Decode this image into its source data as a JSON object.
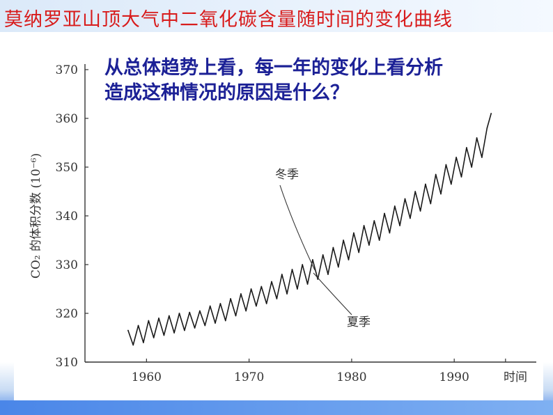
{
  "slide": {
    "title": "莫纳罗亚山顶大气中二氧化碳含量随时间的变化曲线",
    "question_line1": "从总体趋势上看，每一年的变化上看分析",
    "question_line2": "造成这种情况的原因是什么？"
  },
  "chart_data": {
    "type": "line",
    "xlabel": "时间",
    "ylabel": "CO₂ 的体积分数 (10⁻⁶)",
    "xlim": [
      1954,
      1998
    ],
    "ylim": [
      310,
      370
    ],
    "x_ticks": [
      "1960",
      "1970",
      "1980",
      "1990"
    ],
    "y_ticks": [
      "310",
      "320",
      "330",
      "340",
      "350",
      "360",
      "370"
    ],
    "annotations": [
      "冬季",
      "夏季"
    ],
    "series": [
      {
        "x": [
          1958.2,
          1958.7,
          1959.2,
          1959.7,
          1960.2,
          1960.7,
          1961.2,
          1961.7,
          1962.2,
          1962.7,
          1963.2,
          1963.7,
          1964.2,
          1964.7,
          1965.2,
          1965.7,
          1966.2,
          1966.7,
          1967.2,
          1967.7,
          1968.2,
          1968.7,
          1969.2,
          1969.7,
          1970.2,
          1970.7,
          1971.2,
          1971.7,
          1972.2,
          1972.7,
          1973.2,
          1973.7,
          1974.2,
          1974.7,
          1975.2,
          1975.7,
          1976.2,
          1976.7,
          1977.2,
          1977.7,
          1978.2,
          1978.7,
          1979.2,
          1979.7,
          1980.2,
          1980.7,
          1981.2,
          1981.7,
          1982.2,
          1982.7,
          1983.2,
          1983.7,
          1984.2,
          1984.7,
          1985.2,
          1985.7,
          1986.2,
          1986.7,
          1987.2,
          1987.7,
          1988.2,
          1988.7,
          1989.2,
          1989.7,
          1990.2,
          1990.7,
          1991.2,
          1991.7,
          1992.2,
          1992.7,
          1993.2,
          1993.6
        ],
        "values": [
          316.5,
          313.5,
          317.5,
          314.0,
          318.5,
          315.0,
          319.0,
          315.5,
          319.5,
          316.0,
          320.0,
          316.5,
          320.2,
          317.0,
          320.5,
          317.5,
          321.5,
          318.0,
          322.0,
          318.5,
          323.0,
          319.5,
          324.0,
          320.5,
          325.0,
          321.5,
          325.5,
          322.0,
          326.5,
          323.0,
          328.0,
          324.0,
          329.0,
          325.0,
          330.0,
          326.0,
          331.0,
          327.0,
          332.0,
          328.0,
          333.5,
          329.5,
          335.0,
          331.0,
          336.5,
          332.5,
          338.0,
          334.0,
          339.0,
          335.0,
          340.5,
          336.5,
          342.0,
          338.0,
          343.5,
          339.5,
          345.0,
          341.0,
          346.5,
          342.5,
          348.5,
          344.5,
          350.5,
          346.5,
          352.0,
          348.0,
          354.0,
          350.0,
          356.0,
          352.0,
          358.0,
          361.0
        ]
      }
    ]
  }
}
